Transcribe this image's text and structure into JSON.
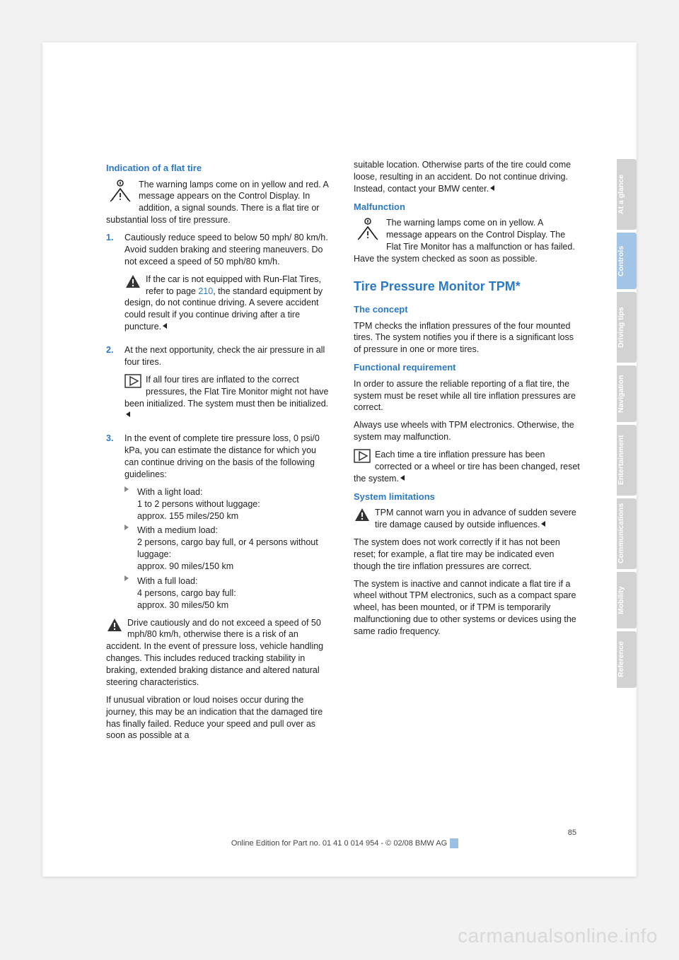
{
  "colors": {
    "blue": "#2b7ac8",
    "tab_gray": "#d2d2d2",
    "tab_blue": "#a2c4e6"
  },
  "left": {
    "h1": "Indication of a flat tire",
    "p1": "The warning lamps come on in yellow and red. A message appears on the Control Display. In addition, a signal sounds. There is a flat tire or substantial loss of tire pressure.",
    "li1_num": "1.",
    "li1": "Cautiously reduce speed to below 50 mph/ 80 km/h. Avoid sudden braking and steering maneuvers. Do not exceed a speed of 50 mph/80 km/h.",
    "warn1a": "If the car is not equipped with Run-Flat Tires, refer to page ",
    "warn1_pg": "210",
    "warn1b": ", the standard equipment by design, do not continue driving. A severe accident could result if you continue driving after a tire puncture.",
    "li2_num": "2.",
    "li2": "At the next opportunity, check the air pressure in all four tires.",
    "note2": "If all four tires are inflated to the correct pressures, the Flat Tire Monitor might not have been initialized. The system must then be initialized.",
    "li3_num": "3.",
    "li3": "In the event of complete tire pressure loss, 0 psi/0 kPa, you can estimate the distance for which you can continue driving on the basis of the following guidelines:",
    "b1a": "With a light load:",
    "b1b": "1 to 2 persons without luggage:",
    "b1c": "approx. 155 miles/250 km",
    "b2a": "With a medium load:",
    "b2b": "2 persons, cargo bay full, or 4 persons without luggage:",
    "b2c": "approx. 90 miles/150 km",
    "b3a": "With a full load:",
    "b3b": "4 persons, cargo bay full:",
    "b3c": "approx. 30 miles/50 km",
    "warn2": "Drive cautiously and do not exceed a speed of 50 mph/80 km/h, otherwise there is a risk of an accident. In the event of pressure loss, vehicle handling changes. This includes reduced tracking stability in braking, extended braking distance and altered natural steering characteristics.",
    "warn2b": "If unusual vibration or loud noises occur during the journey, this may be an indication that the damaged tire has finally failed. Reduce your speed and pull over as soon as possible at a "
  },
  "right": {
    "cont": "suitable location. Otherwise parts of the tire could come loose, resulting in an accident. Do not continue driving. Instead, contact your BMW center.",
    "h_mal": "Malfunction",
    "mal": "The warning lamps come on in yellow. A message appears on the Control Display. The Flat Tire Monitor has a malfunction or has failed. Have the system checked as soon as possible.",
    "h_tpm": "Tire Pressure Monitor TPM*",
    "h_concept": "The concept",
    "concept": "TPM checks the inflation pressures of the four mounted tires. The system notifies you if there is a significant loss of pressure in one or more tires.",
    "h_func": "Functional requirement",
    "func1": "In order to assure the reliable reporting of a flat tire, the system must be reset while all tire inflation pressures are correct.",
    "func2": "Always use wheels with TPM electronics. Otherwise, the system may malfunction.",
    "note_func": "Each time a tire inflation pressure has been corrected or a wheel or tire has been changed, reset the system.",
    "h_sys": "System limitations",
    "sys_warn": "TPM cannot warn you in advance of sudden severe tire damage caused by outside influences.",
    "sys1": "The system does not work correctly if it has not been reset; for example, a flat tire may be indicated even though the tire inflation pressures are correct.",
    "sys2": "The system is inactive and cannot indicate a flat tire if a wheel without TPM electronics, such as a compact spare wheel, has been mounted, or if TPM is temporarily malfunctioning due to other systems or devices using the same radio frequency."
  },
  "tabs": [
    "At a glance",
    "Controls",
    "Driving tips",
    "Navigation",
    "Entertainment",
    "Communications",
    "Mobility",
    "Reference"
  ],
  "active_tab_index": 1,
  "footer": {
    "pgnum": "85",
    "line": "Online Edition for Part no. 01 41 0 014 954  - © 02/08 BMW AG"
  },
  "watermark": "carmanualsonline.info"
}
